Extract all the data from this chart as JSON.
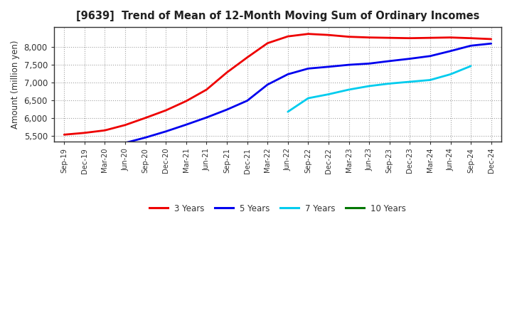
{
  "title": "[9639]  Trend of Mean of 12-Month Moving Sum of Ordinary Incomes",
  "ylabel": "Amount (million yen)",
  "background_color": "#ffffff",
  "plot_bg_color": "#ffffff",
  "grid_color": "#999999",
  "ylim": [
    5350,
    8550
  ],
  "yticks": [
    5500,
    6000,
    6500,
    7000,
    7500,
    8000
  ],
  "x_labels": [
    "Sep-19",
    "Dec-19",
    "Mar-20",
    "Jun-20",
    "Sep-20",
    "Dec-20",
    "Mar-21",
    "Jun-21",
    "Sep-21",
    "Dec-21",
    "Mar-22",
    "Jun-22",
    "Sep-22",
    "Dec-22",
    "Mar-23",
    "Jun-23",
    "Sep-23",
    "Dec-23",
    "Mar-24",
    "Jun-24",
    "Sep-24",
    "Dec-24"
  ],
  "series": {
    "3 Years": {
      "color": "#ee0000",
      "data_x": [
        0,
        1,
        2,
        3,
        4,
        5,
        6,
        7,
        8,
        9,
        10,
        11,
        12,
        13,
        14,
        15,
        16,
        17,
        18,
        19,
        20,
        21
      ],
      "data_y": [
        5540,
        5590,
        5660,
        5810,
        6010,
        6220,
        6480,
        6800,
        7280,
        7700,
        8100,
        8290,
        8360,
        8330,
        8280,
        8260,
        8250,
        8240,
        8250,
        8260,
        8240,
        8215
      ]
    },
    "5 Years": {
      "color": "#0000ee",
      "data_x": [
        2,
        3,
        4,
        5,
        6,
        7,
        8,
        9,
        10,
        11,
        12,
        13,
        14,
        15,
        16,
        17,
        18,
        19,
        20,
        21
      ],
      "data_y": [
        5180,
        5310,
        5460,
        5630,
        5820,
        6020,
        6240,
        6490,
        6940,
        7230,
        7390,
        7440,
        7495,
        7530,
        7600,
        7665,
        7740,
        7880,
        8030,
        8090
      ]
    },
    "7 Years": {
      "color": "#00ccee",
      "data_x": [
        11,
        12,
        13,
        14,
        15,
        16,
        17,
        18,
        19,
        20
      ],
      "data_y": [
        6180,
        6560,
        6670,
        6800,
        6900,
        6970,
        7020,
        7070,
        7230,
        7460
      ]
    },
    "10 Years": {
      "color": "#007700",
      "data_x": [],
      "data_y": []
    }
  },
  "legend_labels": [
    "3 Years",
    "5 Years",
    "7 Years",
    "10 Years"
  ]
}
